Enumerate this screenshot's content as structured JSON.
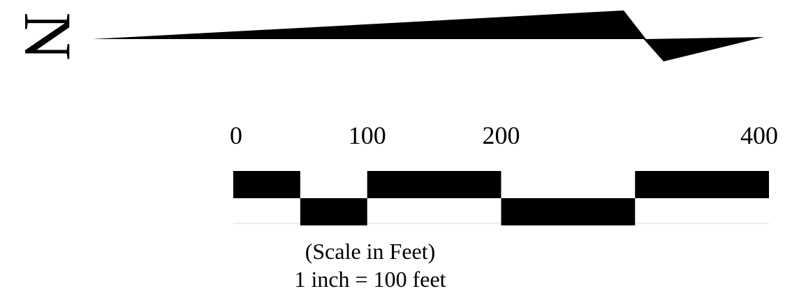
{
  "north_arrow": {
    "letter": "N",
    "icon": "north-arrow-icon",
    "color": "#000000"
  },
  "scale_bar": {
    "max_value": 400,
    "tick_labels": [
      {
        "value": 0,
        "label": "0"
      },
      {
        "value": 100,
        "label": "100"
      },
      {
        "value": 200,
        "label": "200"
      },
      {
        "value": 400,
        "label": "400"
      }
    ],
    "segments": [
      {
        "from": 0,
        "to": 50,
        "row": "top"
      },
      {
        "from": 50,
        "to": 100,
        "row": "bottom"
      },
      {
        "from": 100,
        "to": 200,
        "row": "top"
      },
      {
        "from": 200,
        "to": 300,
        "row": "bottom"
      },
      {
        "from": 300,
        "to": 400,
        "row": "top"
      }
    ],
    "fill_color": "#000000",
    "caption_line1": "(Scale in Feet)",
    "caption_line2": "1 inch = 100 feet"
  }
}
